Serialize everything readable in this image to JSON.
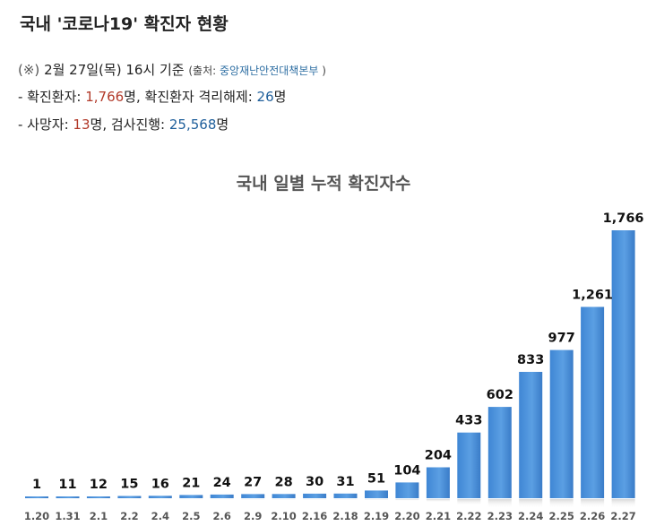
{
  "header": {
    "title": "국내 '코로나19' 확진자 현황",
    "basis_prefix": "(※)",
    "basis_text": "2월 27일(목) 16시 기준",
    "source_open": "(출처:",
    "source_name": "중앙재난안전대책본부",
    "source_close": ")",
    "confirmed_label": "- 확진환자:",
    "confirmed_value": "1,766",
    "confirmed_unit": "명,",
    "released_label": "확진환자 격리해제:",
    "released_value": "26",
    "released_unit": "명",
    "deaths_label": "- 사망자:",
    "deaths_value": "13",
    "deaths_unit": "명, 검사진행:",
    "testing_value": "25,568",
    "testing_unit": "명"
  },
  "chart_data": {
    "type": "bar",
    "title": "국내 일별 누적 확진자수",
    "categories": [
      "1.20",
      "1.31",
      "2.1",
      "2.2",
      "2.4",
      "2.5",
      "2.6",
      "2.9",
      "2.10",
      "2.16",
      "2.18",
      "2.19",
      "2.20",
      "2.21",
      "2.22",
      "2.23",
      "2.24",
      "2.25",
      "2.26",
      "2.27"
    ],
    "values": [
      1,
      11,
      12,
      15,
      16,
      21,
      24,
      27,
      28,
      30,
      31,
      51,
      104,
      204,
      433,
      602,
      833,
      977,
      1261,
      1766
    ],
    "labels": [
      "1",
      "11",
      "12",
      "15",
      "16",
      "21",
      "24",
      "27",
      "28",
      "30",
      "31",
      "51",
      "104",
      "204",
      "433",
      "602",
      "833",
      "977",
      "1,261",
      "1,766"
    ],
    "xlabel": "",
    "ylabel": "",
    "ylim": [
      0,
      1766
    ],
    "grid": false,
    "bar_color": "#4a8fd8"
  }
}
